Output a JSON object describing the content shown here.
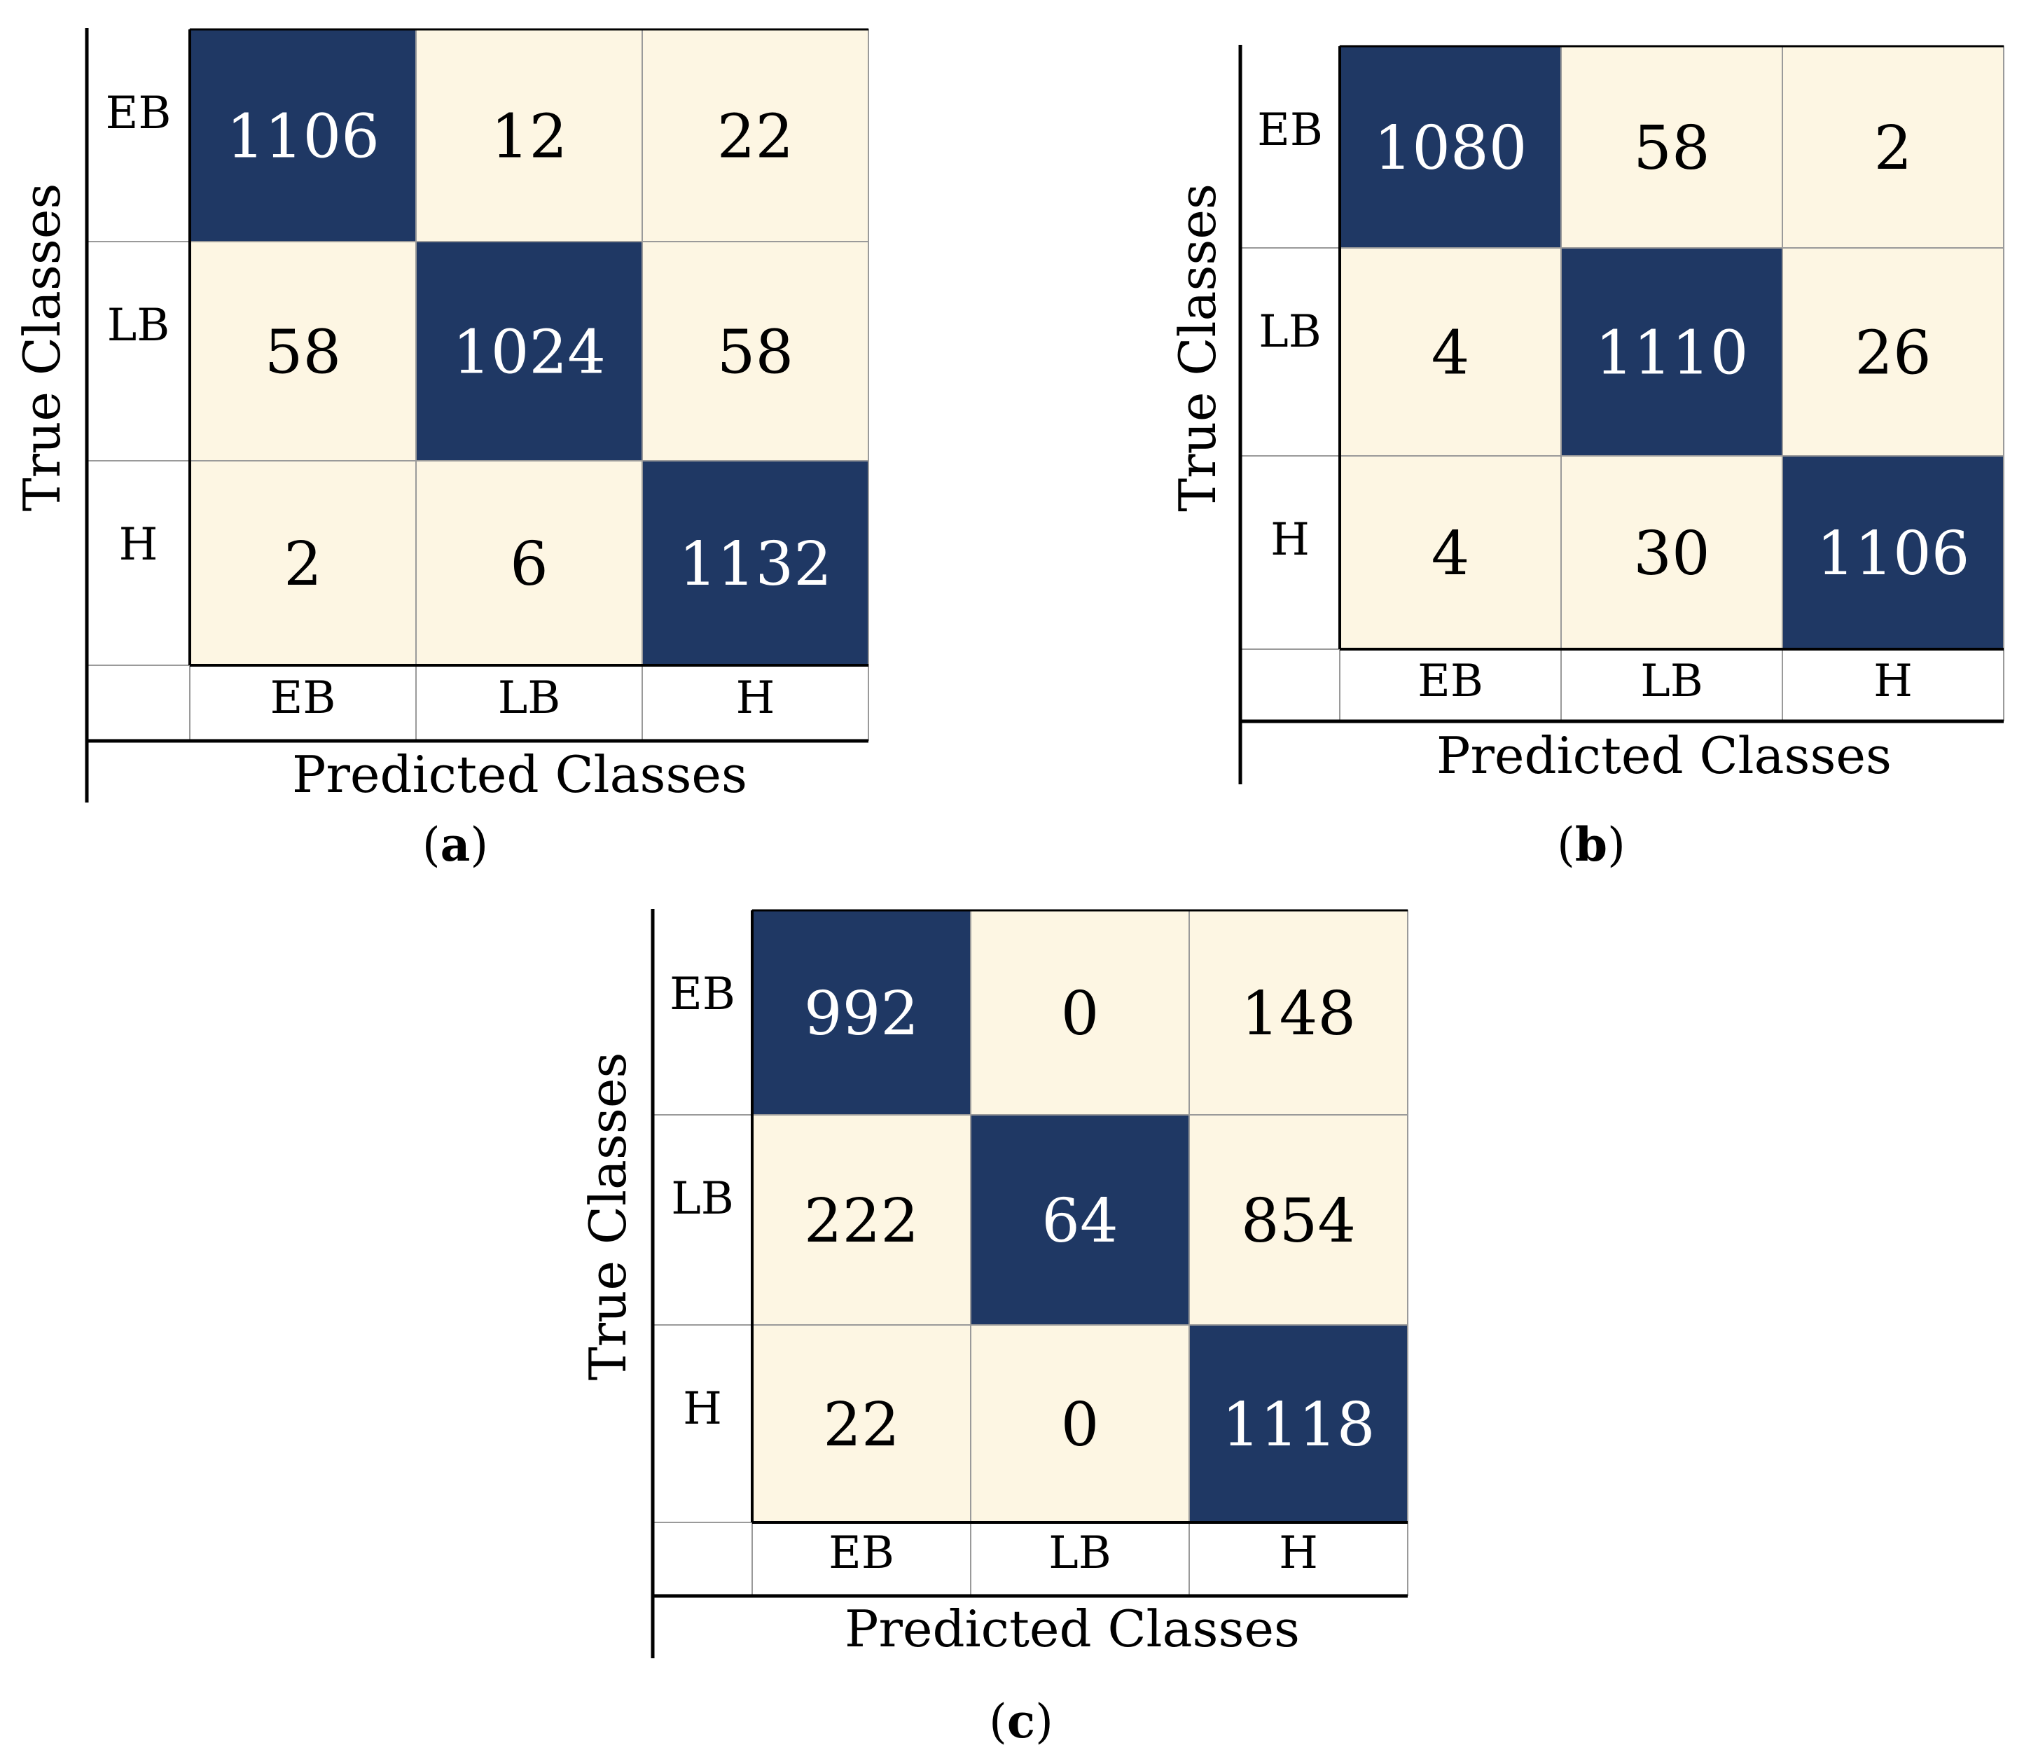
{
  "colors": {
    "diagonal": "#1f3864",
    "off_diagonal": "#fdf6e3",
    "diagonal_text": "#ffffff",
    "off_diagonal_text": "#000000",
    "grid": "#9a9a9a"
  },
  "chart_data": [
    {
      "type": "heatmap",
      "panel": "(a)",
      "panel_bold": "a",
      "rows": [
        "EB",
        "LB",
        "H"
      ],
      "columns": [
        "EB",
        "LB",
        "H"
      ],
      "values": [
        [
          1106,
          12,
          22
        ],
        [
          58,
          1024,
          58
        ],
        [
          2,
          6,
          1132
        ]
      ],
      "ylabel": "True Classes",
      "xlabel": "Predicted Classes"
    },
    {
      "type": "heatmap",
      "panel": "(b)",
      "panel_bold": "b",
      "rows": [
        "EB",
        "LB",
        "H"
      ],
      "columns": [
        "EB",
        "LB",
        "H"
      ],
      "values": [
        [
          1080,
          58,
          2
        ],
        [
          4,
          1110,
          26
        ],
        [
          4,
          30,
          1106
        ]
      ],
      "ylabel": "True Classes",
      "xlabel": "Predicted Classes"
    },
    {
      "type": "heatmap",
      "panel": "(c)",
      "panel_bold": "c",
      "rows": [
        "EB",
        "LB",
        "H"
      ],
      "columns": [
        "EB",
        "LB",
        "H"
      ],
      "values": [
        [
          992,
          0,
          148
        ],
        [
          222,
          64,
          854
        ],
        [
          22,
          0,
          1118
        ]
      ],
      "ylabel": "True Classes",
      "xlabel": "Predicted Classes"
    }
  ]
}
